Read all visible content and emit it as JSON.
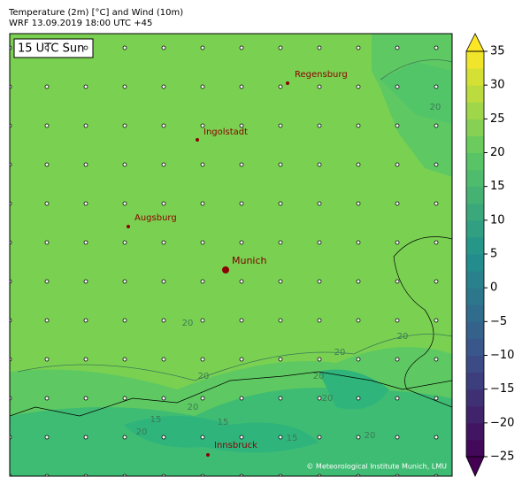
{
  "header": {
    "title": "Temperature (2m) [°C] and Wind (10m)",
    "subtitle": "WRF 13.09.2019 18:00 UTC +45"
  },
  "map": {
    "time_label": "15 UTC Sun",
    "cities": [
      {
        "name": "Regensburg"
      },
      {
        "name": "Ingolstadt"
      },
      {
        "name": "Augsburg"
      },
      {
        "name": "Munich"
      },
      {
        "name": "Innsbruck"
      }
    ],
    "contour_labels": [
      20,
      20,
      20,
      20,
      20,
      20,
      20,
      15,
      15,
      15,
      20,
      20,
      20
    ],
    "copyright": "© Meteorological Institute Munich, LMU"
  },
  "colorbar": {
    "lim": [
      -25,
      35
    ],
    "ticks": [
      {
        "value": -25,
        "label": "−25"
      },
      {
        "value": -20,
        "label": "−20"
      },
      {
        "value": -15,
        "label": "−15"
      },
      {
        "value": -10,
        "label": "−10"
      },
      {
        "value": -5,
        "label": "−5"
      },
      0,
      5,
      10,
      15,
      20,
      25,
      30,
      35
    ]
  }
}
